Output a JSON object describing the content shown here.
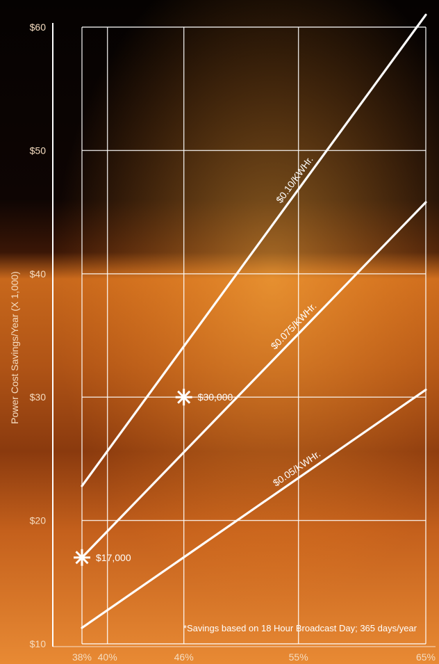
{
  "chart_data": {
    "type": "line",
    "ylabel": "Power Cost Savings/Year (X 1,000)",
    "x_ticks": [
      {
        "value": 38,
        "label": "38%"
      },
      {
        "value": 40,
        "label": "40%"
      },
      {
        "value": 46,
        "label": "46%"
      },
      {
        "value": 55,
        "label": "55%"
      },
      {
        "value": 65,
        "label": "65%"
      }
    ],
    "y_ticks": [
      {
        "value": 10,
        "label": "$10"
      },
      {
        "value": 20,
        "label": "$20"
      },
      {
        "value": 30,
        "label": "$30"
      },
      {
        "value": 40,
        "label": "$40"
      },
      {
        "value": 50,
        "label": "$50"
      },
      {
        "value": 60,
        "label": "$60"
      }
    ],
    "xlim": [
      38,
      65
    ],
    "ylim": [
      10,
      60
    ],
    "grid": true,
    "series": [
      {
        "name": "$0.10/KWHr.",
        "x": [
          38,
          65
        ],
        "y": [
          22.8,
          61.0
        ]
      },
      {
        "name": "$0.075/KWHr.",
        "x": [
          38,
          65
        ],
        "y": [
          17.0,
          45.8
        ]
      },
      {
        "name": "$0.05/KWHr.",
        "x": [
          38,
          65
        ],
        "y": [
          11.3,
          30.6
        ]
      }
    ],
    "annotations": [
      {
        "x": 38,
        "y": 17,
        "label": "$17,000"
      },
      {
        "x": 46,
        "y": 30,
        "label": "$30,000"
      }
    ],
    "footnote": "*Savings based on 18 Hour Broadcast Day; 365 days/year",
    "colors": {
      "line": "#ffffff",
      "grid": "#ffffff",
      "label": "#f5dcc0",
      "bg_top": "#0c0402",
      "bg_fire": "#c85a10",
      "bg_bottom": "#e07a24"
    }
  }
}
